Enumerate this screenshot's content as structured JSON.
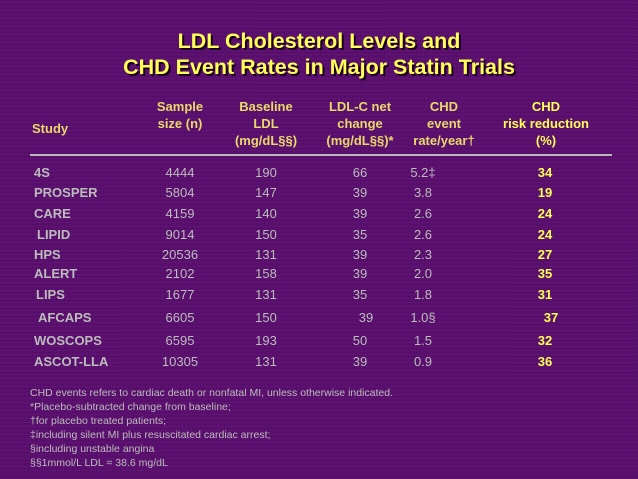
{
  "title": {
    "line1": "LDL Cholesterol Levels and",
    "line2": "CHD Event Rates in Major Statin Trials"
  },
  "headers": {
    "study": "Study",
    "size": [
      "Sample",
      "size (n)"
    ],
    "baseline": [
      "Baseline",
      "LDL",
      "(mg/dL§§)"
    ],
    "ldl_change": [
      "LDL-C net",
      "change",
      "(mg/dL§§)*"
    ],
    "event": [
      "CHD",
      "event",
      "rate/year†"
    ],
    "reduction": [
      "CHD",
      "risk reduction",
      "(%)"
    ]
  },
  "rows": [
    {
      "study": "4S",
      "size": "4444",
      "baseline": "190",
      "ldl_change": "66",
      "event": "5.2‡",
      "reduction": "34"
    },
    {
      "study": "PROSPER",
      "size": "5804",
      "baseline": "147",
      "ldl_change": "39",
      "event": "3.8",
      "reduction": "19"
    },
    {
      "study": "CARE",
      "size": "4159",
      "baseline": "140",
      "ldl_change": "39",
      "event": "2.6",
      "reduction": "24"
    },
    {
      "study": "LIPID",
      "size": "9014",
      "baseline": "150",
      "ldl_change": "35",
      "event": "2.6",
      "reduction": "24"
    },
    {
      "study": "HPS",
      "size": "20536",
      "baseline": "131",
      "ldl_change": "39",
      "event": "2.3",
      "reduction": "27"
    },
    {
      "study": "ALERT",
      "size": "2102",
      "baseline": "158",
      "ldl_change": "39",
      "event": "2.0",
      "reduction": "35"
    },
    {
      "study": "LIPS",
      "size": "1677",
      "baseline": "131",
      "ldl_change": "35",
      "event": "1.8",
      "reduction": "31"
    },
    {
      "study": "AFCAPS",
      "size": "6605",
      "baseline": "150",
      "ldl_change": "39",
      "event": "1.0§",
      "reduction": "37"
    },
    {
      "study": "WOSCOPS",
      "size": "6595",
      "baseline": "193",
      "ldl_change": "50",
      "event": "1.5",
      "reduction": "32"
    },
    {
      "study": "ASCOT-LLA",
      "size": "10305",
      "baseline": "131",
      "ldl_change": "39",
      "event": "0.9",
      "reduction": "36"
    }
  ],
  "notes": [
    "CHD events refers to cardiac death or nonfatal MI, unless otherwise indicated.",
    "*Placebo-subtracted change from baseline;",
    "†for placebo treated patients;",
    "‡including silent MI plus resuscitated cardiac arrest;",
    "§including unstable angina",
    "§§1mmol/L LDL = 38.6 mg/dL"
  ],
  "colors": {
    "background": "#5a0f6e",
    "title": "#ffff55",
    "header": "#e9d96a",
    "text": "#bcbcbc"
  }
}
